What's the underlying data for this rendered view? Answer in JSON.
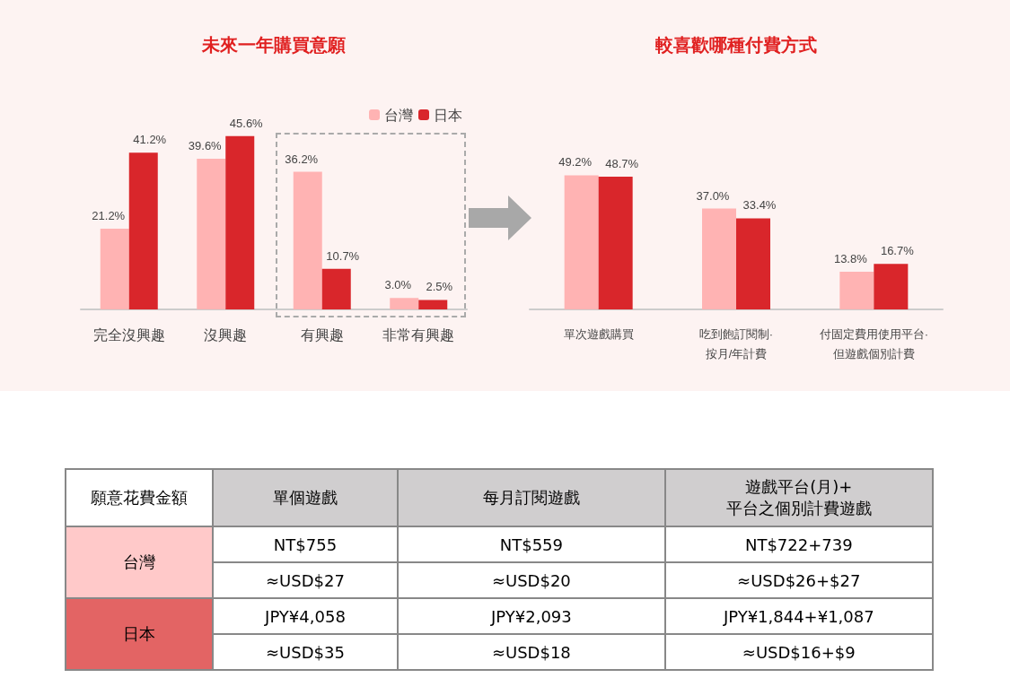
{
  "chart_data": [
    {
      "type": "bar",
      "title": "未來一年購買意願",
      "categories": [
        "完全沒興趣",
        "沒興趣",
        "有興趣",
        "非常有興趣"
      ],
      "legend": "top right",
      "data_labels": true,
      "series": [
        {
          "name": "台灣",
          "color": "#ffb3b3",
          "values": [
            21.2,
            39.6,
            36.2,
            3.0
          ],
          "value_labels": [
            "21.2%",
            "39.6%",
            "36.2%",
            "3.0%"
          ]
        },
        {
          "name": "日本",
          "color": "#d9262b",
          "values": [
            41.2,
            45.6,
            10.7,
            2.5
          ],
          "value_labels": [
            "41.2%",
            "45.6%",
            "10.7%",
            "2.5%"
          ]
        }
      ]
    },
    {
      "type": "bar",
      "title": "較喜歡哪種付費方式",
      "categories": [
        "單次遊戲購買",
        "吃到飽訂閱制·\n按月/年計費",
        "付固定費用使用平台·\n但遊戲個別計費"
      ],
      "legend": false,
      "data_labels": true,
      "series": [
        {
          "color": "#ffb3b3",
          "values": [
            49.2,
            37.0,
            13.8
          ],
          "value_labels": [
            "49.2%",
            "37.0%",
            "13.8%"
          ]
        },
        {
          "color": "#d9262b",
          "values": [
            48.7,
            33.4,
            16.7
          ],
          "value_labels": [
            "48.7%",
            "33.4%",
            "16.7%"
          ]
        }
      ]
    },
    {
      "type": "other",
      "title": "願意花費金額",
      "categories": [
        "單個遊戲",
        "每月訂閱遊戲",
        "遊戲平台(月)+\n平台之個別計費遊戲"
      ],
      "y_categories": [
        "台灣",
        "日本"
      ],
      "cell_labels": [
        [
          "NT$755",
          "NT$559",
          "NT$722+739"
        ],
        [
          "≈USD$27",
          "≈USD$20",
          "≈USD$26+$27"
        ],
        [
          "JPY¥4,058",
          "JPY¥2,093",
          "JPY¥1,844+¥1,087"
        ],
        [
          "≈USD$35",
          "≈USD$18",
          "≈USD$16+$9"
        ]
      ]
    }
  ]
}
